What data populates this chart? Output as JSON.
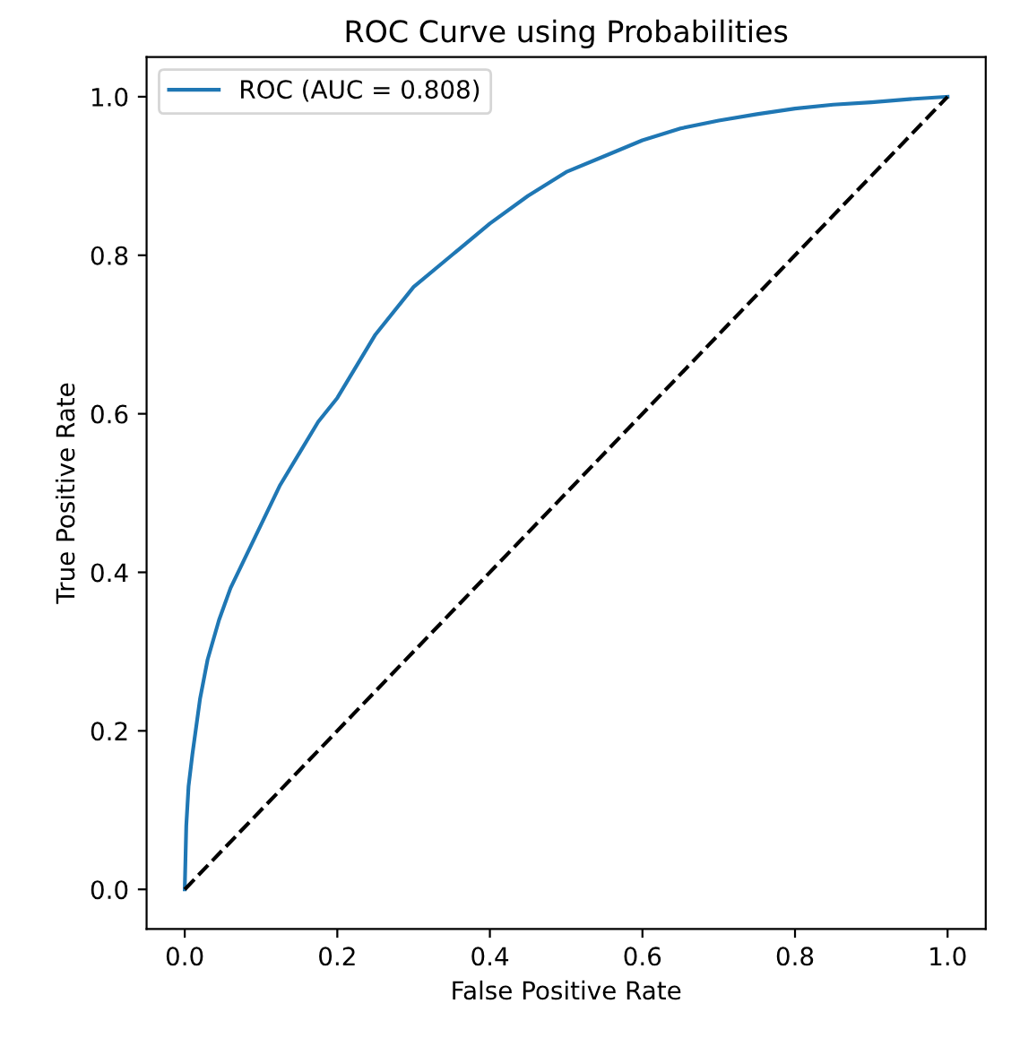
{
  "chart_data": {
    "type": "line",
    "title": "ROC Curve using Probabilities",
    "xlabel": "False Positive Rate",
    "ylabel": "True Positive Rate",
    "xlim": [
      -0.05,
      1.05
    ],
    "ylim": [
      -0.05,
      1.05
    ],
    "xticks": [
      {
        "value": 0,
        "label": "0.0"
      },
      0.2,
      0.4,
      0.6,
      0.8,
      {
        "value": 1,
        "label": "1.0"
      }
    ],
    "yticks": [
      {
        "value": 0,
        "label": "0.0"
      },
      0.2,
      0.4,
      0.6,
      0.8,
      {
        "value": 1,
        "label": "1.0"
      }
    ],
    "legend": "top left",
    "grid": false,
    "series": [
      {
        "name": "ROC (AUC = 0.808)",
        "color": "#1f77b4",
        "line_style": "solid",
        "x": [
          0,
          0.002,
          0.005,
          0.01,
          0.02,
          0.03,
          0.045,
          0.06,
          0.075,
          0.1,
          0.125,
          0.15,
          0.175,
          0.2,
          0.25,
          0.3,
          0.35,
          0.4,
          0.45,
          0.5,
          0.55,
          0.6,
          0.65,
          0.7,
          0.75,
          0.8,
          0.85,
          0.9,
          0.95,
          1.0
        ],
        "values": [
          0,
          0.08,
          0.13,
          0.17,
          0.24,
          0.29,
          0.34,
          0.38,
          0.41,
          0.46,
          0.51,
          0.55,
          0.59,
          0.62,
          0.7,
          0.76,
          0.8,
          0.84,
          0.875,
          0.905,
          0.925,
          0.945,
          0.96,
          0.97,
          0.978,
          0.985,
          0.99,
          0.993,
          0.997,
          1.0
        ]
      },
      {
        "color": "#000000",
        "line_style": "dashed",
        "x": [
          0,
          1
        ],
        "values": [
          0,
          1
        ]
      }
    ]
  }
}
